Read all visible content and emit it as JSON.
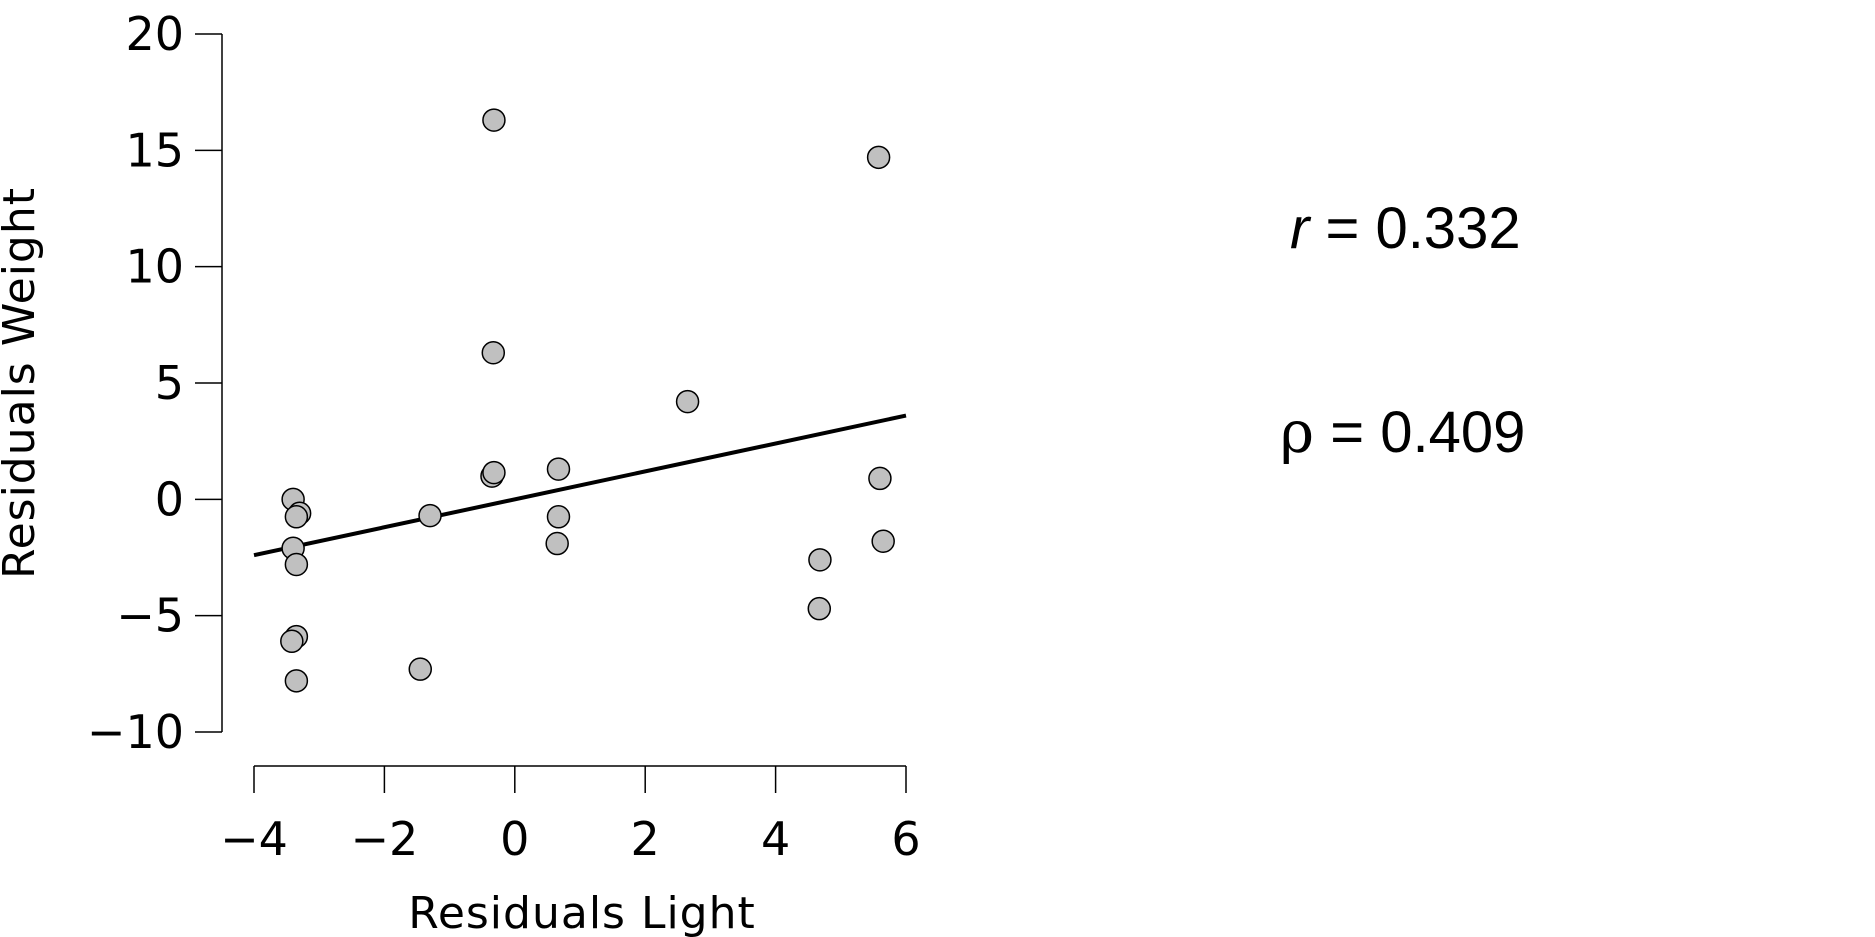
{
  "chart_data": {
    "type": "scatter",
    "xlabel": "Residuals Light",
    "ylabel": "Residuals Weight",
    "xlim": [
      -4,
      6
    ],
    "ylim": [
      -10,
      20
    ],
    "xticks": [
      -4,
      -2,
      0,
      2,
      4,
      6
    ],
    "yticks": [
      -10,
      -5,
      0,
      5,
      10,
      15,
      20
    ],
    "xtick_labels": [
      "−4",
      "−2",
      "0",
      "2",
      "4",
      "6"
    ],
    "ytick_labels": [
      "−10",
      "−5",
      "0",
      "5",
      "10",
      "15",
      "20"
    ],
    "grid": false,
    "point_color": "#c0c0c0",
    "points": [
      {
        "x": -3.4,
        "y": 0.0
      },
      {
        "x": -3.3,
        "y": -0.6
      },
      {
        "x": -3.35,
        "y": -0.75
      },
      {
        "x": -3.4,
        "y": -2.1
      },
      {
        "x": -3.35,
        "y": -2.8
      },
      {
        "x": -3.35,
        "y": -5.9
      },
      {
        "x": -3.42,
        "y": -6.1
      },
      {
        "x": -3.35,
        "y": -7.8
      },
      {
        "x": -1.3,
        "y": -0.7
      },
      {
        "x": -1.45,
        "y": -7.3
      },
      {
        "x": -0.35,
        "y": 1.0
      },
      {
        "x": -0.32,
        "y": 1.15
      },
      {
        "x": -0.33,
        "y": 6.3
      },
      {
        "x": -0.32,
        "y": 16.3
      },
      {
        "x": 0.67,
        "y": 1.3
      },
      {
        "x": 0.67,
        "y": -0.75
      },
      {
        "x": 0.65,
        "y": -1.9
      },
      {
        "x": 2.65,
        "y": 4.2
      },
      {
        "x": 4.68,
        "y": -2.6
      },
      {
        "x": 4.67,
        "y": -4.7
      },
      {
        "x": 5.58,
        "y": 14.7
      },
      {
        "x": 5.6,
        "y": 0.9
      },
      {
        "x": 5.65,
        "y": -1.8
      }
    ],
    "fit_line": {
      "x": [
        -4,
        6
      ],
      "y": [
        -2.4,
        3.6
      ]
    }
  },
  "stats": {
    "r_symbol": "r",
    "r_value": "= 0.332",
    "rho_symbol": "ρ",
    "rho_value": "= 0.409"
  }
}
